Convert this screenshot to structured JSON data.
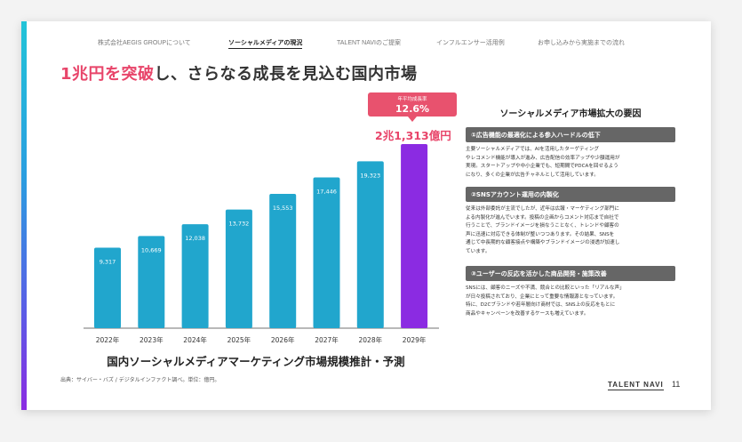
{
  "nav": [
    {
      "label": "株式会社AEGIS GROUPについて",
      "active": false
    },
    {
      "label": "ソーシャルメディアの現況",
      "active": true
    },
    {
      "label": "TALENT NAVIのご提案",
      "active": false
    },
    {
      "label": "インフルエンサー活用例",
      "active": false
    },
    {
      "label": "お申し込みから実施までの流れ",
      "active": false
    }
  ],
  "title": {
    "highlight": "1兆円を突破",
    "rest": "し、さらなる成長を見込む国内市場"
  },
  "cagr": {
    "label": "年平均成長率",
    "value": "12.6%"
  },
  "total_label": "2兆1,313億円",
  "chart_data": {
    "type": "bar",
    "title": "国内ソーシャルメディアマーケティング市場規模推計・予測",
    "categories": [
      "2022年",
      "2023年",
      "2024年",
      "2025年",
      "2026年",
      "2027年",
      "2028年",
      "2029年"
    ],
    "values": [
      9317,
      10669,
      12038,
      13732,
      15553,
      17446,
      19323,
      21313
    ],
    "value_labels": [
      "9,317",
      "10,669",
      "12,038",
      "13,732",
      "15,553",
      "17,446",
      "19,323",
      ""
    ],
    "unit": "億円",
    "ylim": [
      0,
      21313
    ],
    "colors": {
      "normal": "#21a6cd",
      "highlight": "#8b2be2"
    },
    "grid": false
  },
  "source": "出典：サイバー・バズ / デジタルインファクト調べ。単位：億円。",
  "factors": {
    "title": "ソーシャルメディア市場拡大の要因",
    "items": [
      {
        "header": "①広告機能の最適化による参入ハードルの低下",
        "lines": [
          "主要ソーシャルメディアでは、AIを活用したターゲティング",
          "やレコメンド機能が導入が進み、広告配信の効率アップや少額運用が",
          "実現。スタートアップや中小企業でも、短期間でPDCAを回せるよう",
          "になり、多くの企業が広告チャネルとして活用しています。"
        ]
      },
      {
        "header": "②SNSアカウント運用の内製化",
        "lines": [
          "従来は外部委託が主流でしたが、近年は広報・マーケティング部門に",
          "よる内製化が進んでいます。投稿の企画からコメント対応まで自社で",
          "行うことで、ブランドイメージを損なうことなく、トレンドや顧客の",
          "声に迅速に対応できる体制が整いつつあります。その結果、SNSを",
          "通じて中長期的な顧客接点や構築やブランドイメージの浸透が加速し",
          "ています。"
        ]
      },
      {
        "header": "③ユーザーの反応を活かした商品開発・施策改善",
        "lines": [
          "SNSには、顧客のニーズや不満、競合との比較といった「リアルな声」",
          "が日々投稿されており、企業にとって重要な情報源となっています。",
          "特に、D2Cブランドや若年層向け商材では、SNS上の反応をもとに",
          "商品やキャンペーンを改善するケースも増えています。"
        ]
      }
    ]
  },
  "footer": {
    "brand": "TALENT NAVI",
    "page": "11"
  }
}
